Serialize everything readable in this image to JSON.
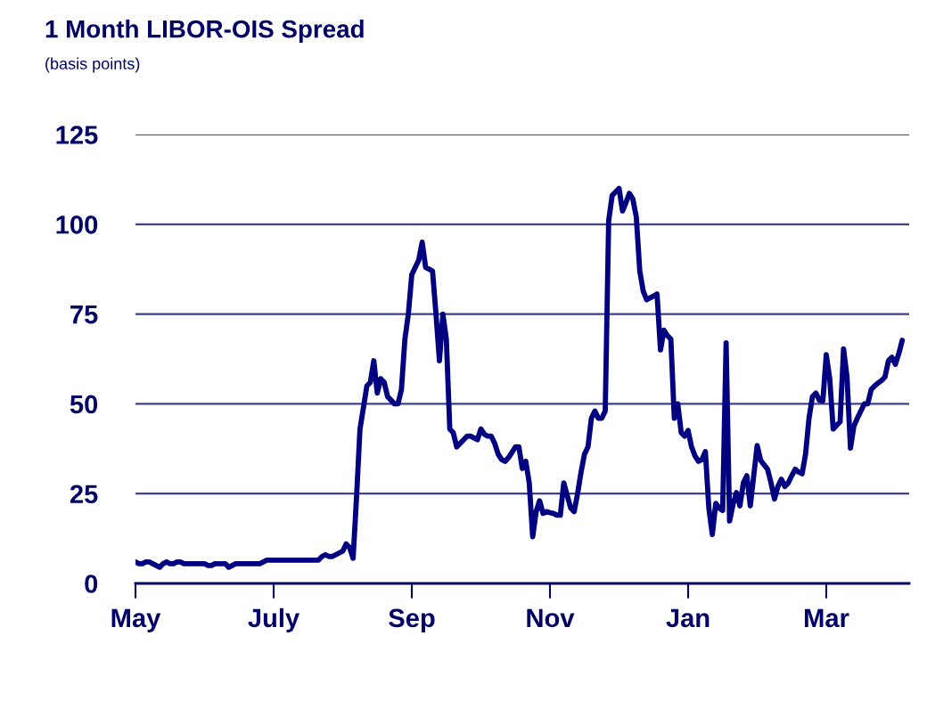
{
  "chart_data": {
    "type": "line",
    "title": "1 Month LIBOR-OIS Spread",
    "subtitle": "(basis points)",
    "categories": [
      "May",
      null,
      null,
      null,
      null,
      null,
      null,
      null,
      null,
      null,
      null,
      null,
      null,
      null,
      null,
      null,
      null,
      null,
      null,
      null,
      null,
      null,
      null,
      null,
      null,
      null,
      null,
      null,
      null,
      null,
      null,
      null,
      null,
      null,
      null,
      null,
      null,
      null,
      null,
      null,
      "July",
      null,
      null,
      null,
      null,
      null,
      null,
      null,
      null,
      null,
      null,
      null,
      null,
      null,
      null,
      null,
      null,
      null,
      null,
      null,
      null,
      null,
      null,
      null,
      null,
      null,
      null,
      null,
      null,
      null,
      null,
      null,
      null,
      null,
      null,
      null,
      null,
      null,
      null,
      null,
      "Sep",
      null,
      null,
      null,
      null,
      null,
      null,
      null,
      null,
      null,
      null,
      null,
      null,
      null,
      null,
      null,
      null,
      null,
      null,
      null,
      null,
      null,
      null,
      null,
      null,
      null,
      null,
      null,
      null,
      null,
      null,
      null,
      null,
      null,
      null,
      null,
      null,
      null,
      null,
      null,
      "Nov",
      null,
      null,
      null,
      null,
      null,
      null,
      null,
      null,
      null,
      null,
      null,
      null,
      null,
      null,
      null,
      null,
      null,
      null,
      null,
      null,
      null,
      null,
      null,
      null,
      null,
      null,
      null,
      null,
      null,
      null,
      null,
      null,
      null,
      null,
      null,
      null,
      null,
      null,
      null,
      "Jan",
      null,
      null,
      null,
      null,
      null,
      null,
      null,
      null,
      null,
      null,
      null,
      null,
      null,
      null,
      null,
      null,
      null,
      null,
      null,
      null,
      null,
      null,
      null,
      null,
      null,
      null,
      null,
      null,
      null,
      null,
      null,
      null,
      null,
      null,
      null,
      null,
      null,
      null,
      null,
      "Mar",
      null,
      null,
      null,
      null,
      null,
      null,
      null,
      null,
      null,
      null,
      null,
      null,
      null,
      null,
      null,
      null,
      null,
      null,
      null,
      null,
      null,
      null,
      null,
      null
    ],
    "ylim": [
      0,
      125
    ],
    "yticks": [
      0,
      25,
      50,
      75,
      100,
      125
    ],
    "grid": "y",
    "legend": false,
    "marker": "none",
    "line_style": "solid",
    "series": [
      {
        "color": "#000080",
        "values": [
          6,
          5.5,
          5.5,
          6,
          6,
          5.5,
          5,
          4.5,
          5.5,
          6,
          5.5,
          5.5,
          6,
          6,
          5.5,
          5.5,
          5.5,
          5.5,
          5.5,
          5.5,
          5.5,
          5,
          5,
          5.5,
          5.5,
          5.5,
          5.5,
          4.5,
          5,
          5.5,
          5.5,
          5.5,
          5.5,
          5.5,
          5.5,
          5.5,
          5.5,
          6,
          6.5,
          6.5,
          6.5,
          6.5,
          6.5,
          6.5,
          6.5,
          6.5,
          6.5,
          6.5,
          6.5,
          6.5,
          6.5,
          6.5,
          6.5,
          6.5,
          7.5,
          8,
          7.5,
          7.5,
          8,
          8.5,
          9,
          11,
          10,
          7,
          24,
          43,
          49,
          55,
          56,
          62,
          53,
          57,
          56,
          52,
          51,
          50,
          50,
          54,
          68,
          75,
          86,
          88,
          90,
          95,
          88,
          87.5,
          87,
          75,
          62,
          75,
          68,
          43,
          42,
          38,
          39,
          40,
          41,
          41,
          40.5,
          40,
          43,
          41.5,
          41,
          41,
          39,
          36,
          34.5,
          34,
          35,
          36.5,
          38,
          38,
          32,
          34,
          28,
          13,
          20,
          23,
          19.5,
          20,
          19.7,
          19.5,
          19,
          19,
          28,
          24.5,
          21,
          20,
          25,
          31,
          36,
          38,
          46,
          48,
          46,
          46,
          48,
          101,
          108,
          109,
          110,
          103.7,
          106,
          108.6,
          107,
          102,
          87,
          81.4,
          79,
          79.5,
          80,
          80.6,
          65,
          70.5,
          69,
          68,
          46,
          50,
          42,
          41,
          42.6,
          38,
          35.5,
          34,
          34.5,
          36.7,
          21,
          13.6,
          22.3,
          21,
          20.3,
          67,
          17.4,
          22,
          25.3,
          21.6,
          28,
          30,
          21.6,
          30,
          38.4,
          34.3,
          33,
          31.8,
          28,
          23.5,
          27,
          29,
          27,
          28,
          30,
          31.8,
          31,
          30.5,
          36,
          46,
          52,
          53,
          51,
          50.8,
          63.7,
          57,
          43,
          44,
          45,
          65.3,
          57.5,
          37.7,
          43.8,
          46,
          48,
          50,
          50,
          54,
          55,
          55.8,
          56.5,
          57.5,
          62,
          63,
          61,
          64,
          67.7,
          null,
          null
        ]
      }
    ]
  }
}
